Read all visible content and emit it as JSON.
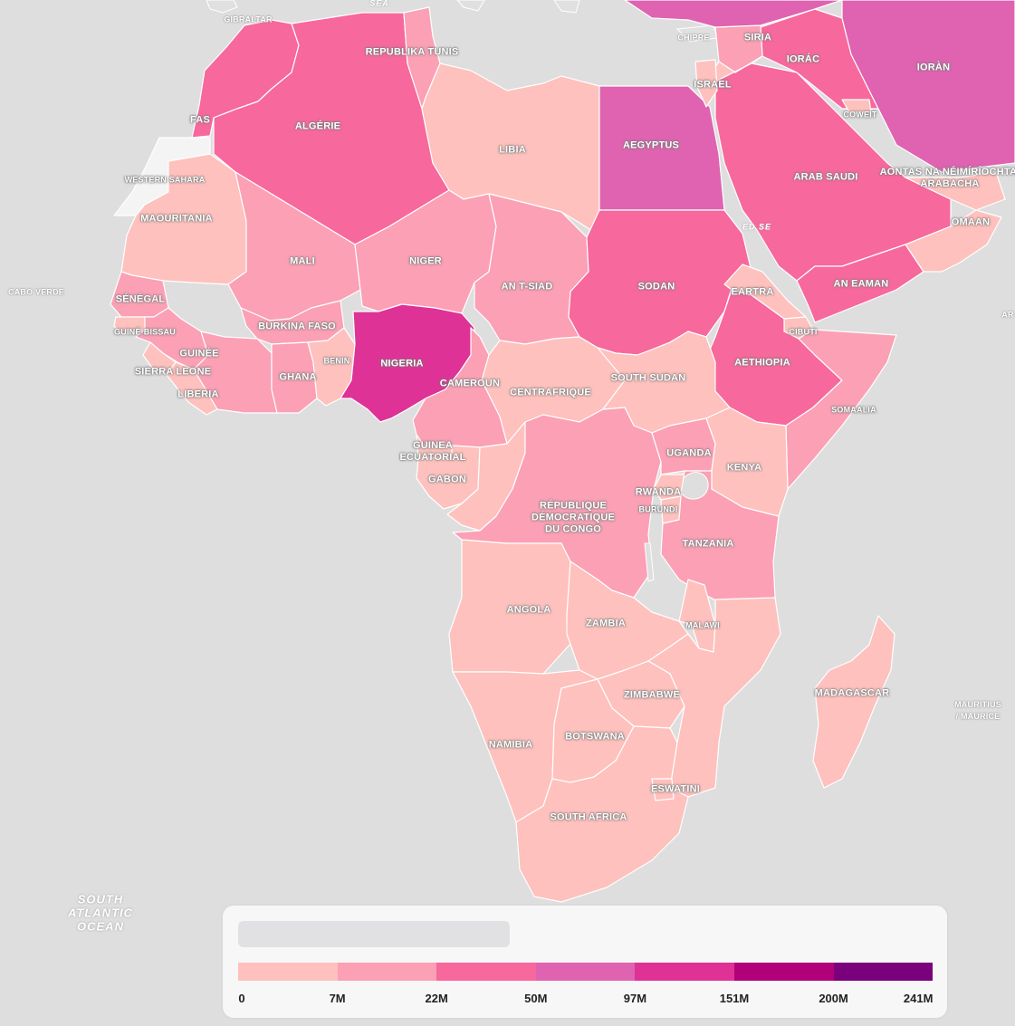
{
  "colors": {
    "ocean": "#dedede",
    "outside": "#e0e0e0",
    "scale": [
      "#fec1bd",
      "#fba0b5",
      "#f7689c",
      "#df63b0",
      "#de3297",
      "#b2007a",
      "#7a007c"
    ],
    "no_data": "#f4f4f4"
  },
  "legend": {
    "title": "",
    "breaks": [
      "0",
      "7M",
      "22M",
      "50M",
      "97M",
      "151M",
      "200M",
      "241M"
    ]
  },
  "sea_labels": [
    {
      "id": "south-atlantic",
      "text": "SOUTH\nATLANTIC\nOCEAN"
    },
    {
      "id": "red-sea",
      "text": "ED SE"
    },
    {
      "id": "med-sea",
      "text": "SEA"
    }
  ],
  "countries": [
    {
      "id": "morocco",
      "label": "FAS",
      "bin": 2
    },
    {
      "id": "western-sahara",
      "label": "WESTERN SAHARA",
      "bin": -1
    },
    {
      "id": "algeria",
      "label": "ALGÉRIE",
      "bin": 2
    },
    {
      "id": "tunisia",
      "label": "REPUBLIKA TUNIS",
      "bin": 1
    },
    {
      "id": "libya",
      "label": "LIBIA",
      "bin": 0
    },
    {
      "id": "egypt",
      "label": "AEGYPTUS",
      "bin": 3
    },
    {
      "id": "mauritania",
      "label": "MAOURITANIA",
      "bin": 0
    },
    {
      "id": "mali",
      "label": "MALI",
      "bin": 1
    },
    {
      "id": "niger",
      "label": "NIGER",
      "bin": 1
    },
    {
      "id": "chad",
      "label": "AN T-SIAD",
      "bin": 1
    },
    {
      "id": "sudan",
      "label": "SODAN",
      "bin": 2
    },
    {
      "id": "eritrea",
      "label": "EARTRA",
      "bin": 0
    },
    {
      "id": "djibouti",
      "label": "CIBUTI",
      "bin": 0
    },
    {
      "id": "ethiopia",
      "label": "AETHIOPIA",
      "bin": 2
    },
    {
      "id": "somalia",
      "label": "SOMAALIA",
      "bin": 1
    },
    {
      "id": "senegal",
      "label": "SÉNÉGAL",
      "bin": 1
    },
    {
      "id": "guinea-bissau",
      "label": "GUINÉ-BISSAU",
      "bin": 0
    },
    {
      "id": "guinea",
      "label": "GUINÉE",
      "bin": 1
    },
    {
      "id": "sierra-leone",
      "label": "SIERRA LEONE",
      "bin": 0
    },
    {
      "id": "liberia",
      "label": "LIBERIA",
      "bin": 0
    },
    {
      "id": "cote-divoire",
      "label": "",
      "bin": 1
    },
    {
      "id": "burkina-faso",
      "label": "BURKINA FASO",
      "bin": 1
    },
    {
      "id": "ghana",
      "label": "GHANA",
      "bin": 1
    },
    {
      "id": "togo-benin",
      "label": "BENIN",
      "bin": 0
    },
    {
      "id": "nigeria",
      "label": "NIGERIA",
      "bin": 4
    },
    {
      "id": "cameroon",
      "label": "CAMEROUN",
      "bin": 1
    },
    {
      "id": "car",
      "label": "CENTRAFRIQUE",
      "bin": 0
    },
    {
      "id": "south-sudan",
      "label": "SOUTH SUDAN",
      "bin": 0
    },
    {
      "id": "eq-guinea",
      "label": "GUINEA\nECUATORIAL",
      "bin": 0
    },
    {
      "id": "gabon",
      "label": "GABON",
      "bin": 0
    },
    {
      "id": "congo",
      "label": "",
      "bin": 0
    },
    {
      "id": "drc",
      "label": "RÉPUBLIQUE\nDÉMOCRATIQUE\nDU CONGO",
      "bin": 1
    },
    {
      "id": "uganda",
      "label": "UGANDA",
      "bin": 1
    },
    {
      "id": "kenya",
      "label": "KENYA",
      "bin": 0
    },
    {
      "id": "rwanda",
      "label": "RWANDA",
      "bin": 0
    },
    {
      "id": "burundi",
      "label": "BURUNDI",
      "bin": 0
    },
    {
      "id": "tanzania",
      "label": "TANZANIA",
      "bin": 1
    },
    {
      "id": "angola",
      "label": "ANGOLA",
      "bin": 0
    },
    {
      "id": "zambia",
      "label": "ZAMBIA",
      "bin": 0
    },
    {
      "id": "malawi",
      "label": "MALAWI",
      "bin": 0
    },
    {
      "id": "mozambique",
      "label": "",
      "bin": 0
    },
    {
      "id": "zimbabwe",
      "label": "ZIMBABWE",
      "bin": 0
    },
    {
      "id": "namibia",
      "label": "NAMIBIA",
      "bin": 0
    },
    {
      "id": "botswana",
      "label": "BOTSWANA",
      "bin": 0
    },
    {
      "id": "south-africa",
      "label": "SOUTH AFRICA",
      "bin": 0
    },
    {
      "id": "eswatini",
      "label": "ESWATINI",
      "bin": 0
    },
    {
      "id": "madagascar",
      "label": "MADAGASCAR",
      "bin": 0
    },
    {
      "id": "saudi-arabia",
      "label": "ARAB SAUDI",
      "bin": 2
    },
    {
      "id": "yemen",
      "label": "AN EAMAN",
      "bin": 2
    },
    {
      "id": "oman",
      "label": "OMAAN",
      "bin": 0
    },
    {
      "id": "uae",
      "label": "AONTAS NA NÉIMÍRÍOCHTAÍ\nARABACHA",
      "bin": 0
    },
    {
      "id": "iraq",
      "label": "IORÁC",
      "bin": 2
    },
    {
      "id": "iran",
      "label": "IORÀN",
      "bin": 3
    },
    {
      "id": "syria",
      "label": "SIRIA",
      "bin": 1
    },
    {
      "id": "jordan",
      "label": "",
      "bin": 0
    },
    {
      "id": "israel",
      "label": "ISRAEL",
      "bin": 0
    },
    {
      "id": "kuwait",
      "label": "COWEIT",
      "bin": 0
    },
    {
      "id": "turkey",
      "label": "",
      "bin": 3
    }
  ],
  "outside_labels": [
    {
      "id": "cabo-verde",
      "text": "CABO VERDE"
    },
    {
      "id": "gibraltar",
      "text": "GIBRALTAR"
    },
    {
      "id": "cyprus",
      "text": "CHIPRE"
    },
    {
      "id": "mauritius",
      "text": "MAURITIUS\n/ MAURICE"
    },
    {
      "id": "ar-cut",
      "text": "AR"
    }
  ]
}
